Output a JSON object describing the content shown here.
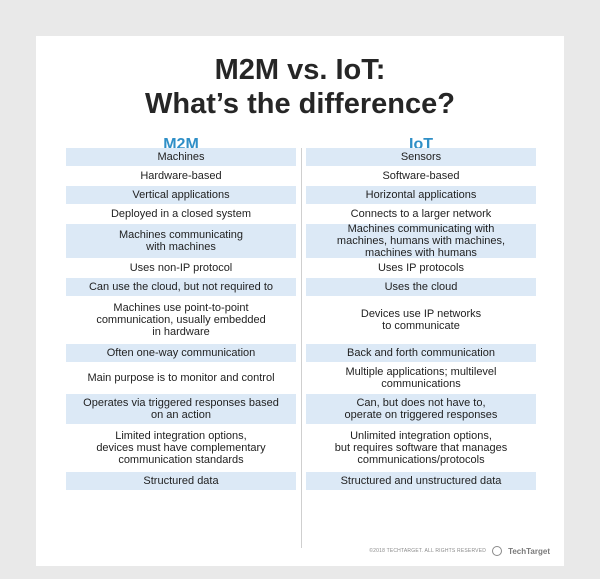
{
  "title": {
    "line1": "M2M vs. IoT:",
    "line2": "What’s the difference?"
  },
  "columns": {
    "left": "M2M",
    "right": "IoT"
  },
  "rows": [
    {
      "m2m": "Machines",
      "iot": "Sensors",
      "shaded": true
    },
    {
      "m2m": "Hardware-based",
      "iot": "Software-based",
      "shaded": false
    },
    {
      "m2m": "Vertical applications",
      "iot": "Horizontal applications",
      "shaded": true
    },
    {
      "m2m": "Deployed in a closed system",
      "iot": "Connects to a larger network",
      "shaded": false
    },
    {
      "m2m": "Machines communicating\nwith machines",
      "iot": "Machines communicating with\nmachines, humans with machines,\nmachines with humans",
      "shaded": true
    },
    {
      "m2m": "Uses non-IP protocol",
      "iot": "Uses IP protocols",
      "shaded": false
    },
    {
      "m2m": "Can use the cloud, but not required to",
      "iot": "Uses the cloud",
      "shaded": true
    },
    {
      "m2m": "Machines use point-to-point\ncommunication, usually embedded\nin hardware",
      "iot": "Devices use IP networks\nto communicate",
      "shaded": false
    },
    {
      "m2m": "Often one-way communication",
      "iot": "Back and forth communication",
      "shaded": true
    },
    {
      "m2m": "Main purpose is to monitor and control",
      "iot": "Multiple applications; multilevel\ncommunications",
      "shaded": false
    },
    {
      "m2m": "Operates via triggered responses based\non an action",
      "iot": "Can, but does not have to,\noperate on triggered responses",
      "shaded": true
    },
    {
      "m2m": "Limited integration options,\ndevices must have complementary\ncommunication standards",
      "iot": "Unlimited integration options,\nbut requires software that manages\ncommunications/protocols",
      "shaded": false
    },
    {
      "m2m": "Structured data",
      "iot": "Structured and unstructured data",
      "shaded": true
    }
  ],
  "footer": {
    "copyright": "©2018 TECHTARGET. ALL RIGHTS RESERVED",
    "logo_text": "TechTarget"
  },
  "colors": {
    "header_text": "#2f8fc7",
    "row_shade": "#dce9f6",
    "background": "#e9e9e9"
  }
}
